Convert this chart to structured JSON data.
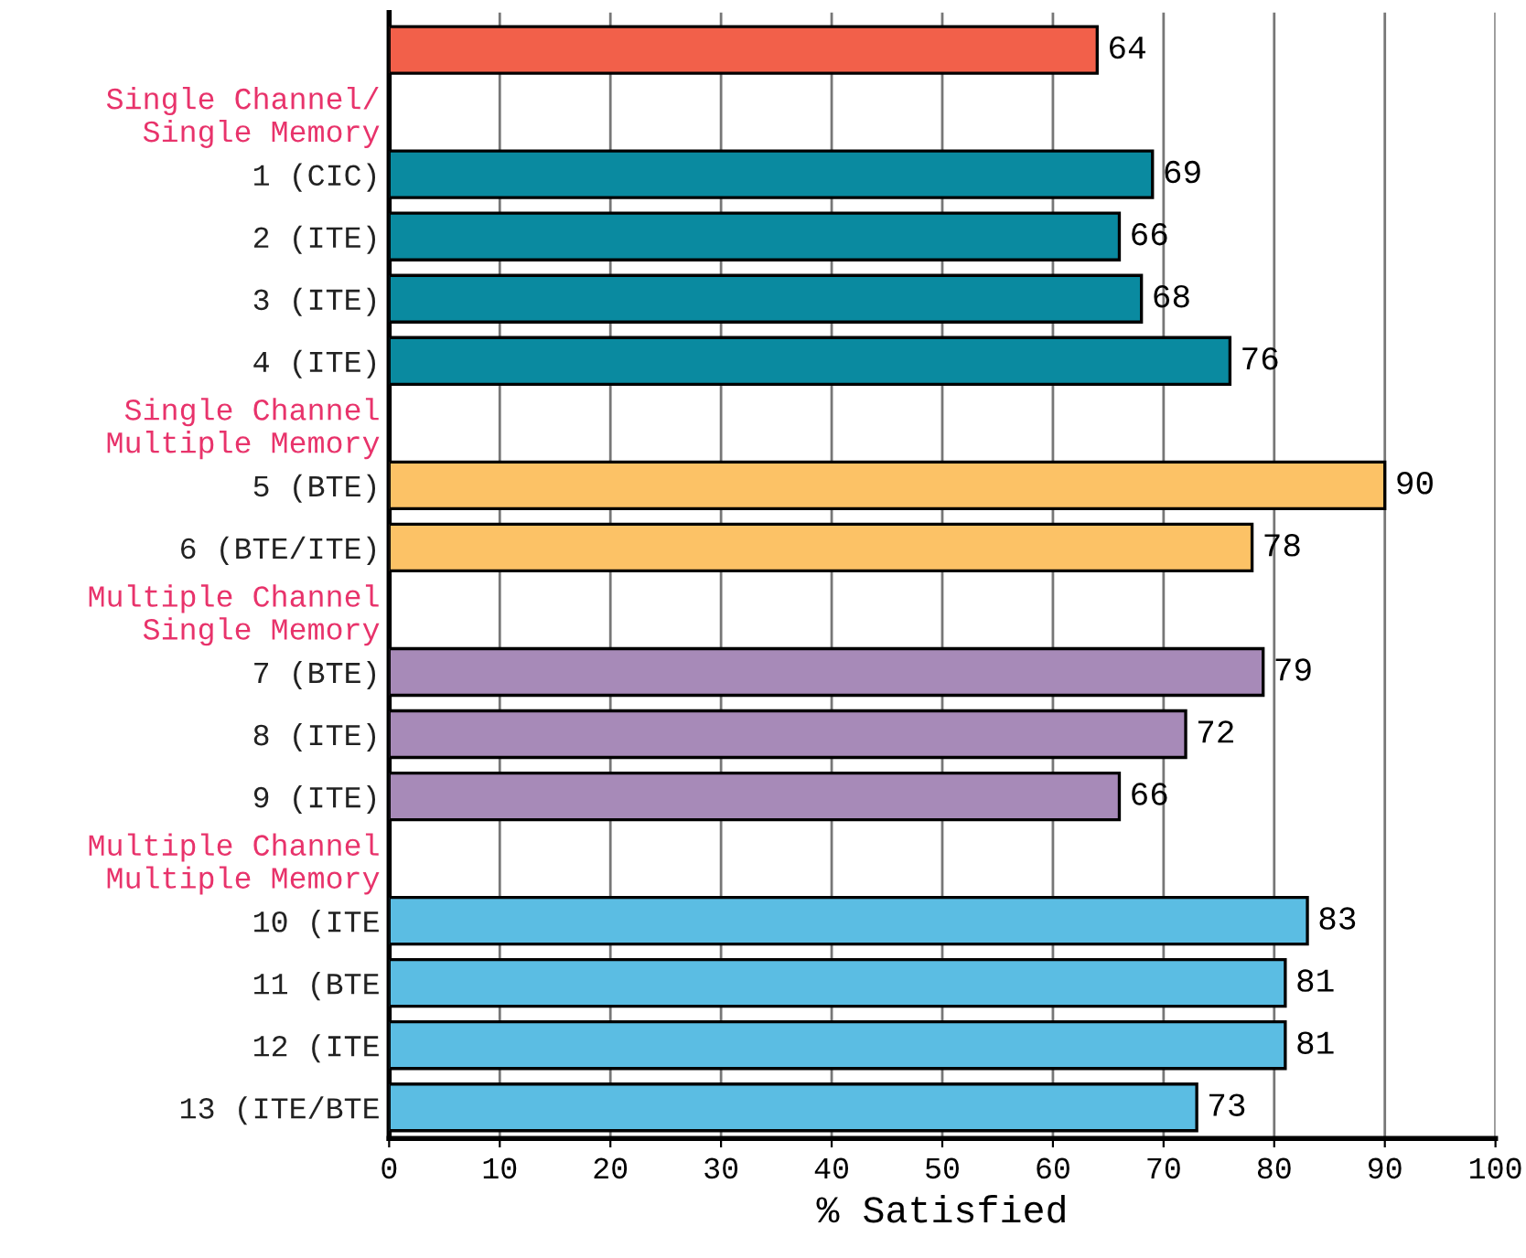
{
  "chart_data": {
    "type": "bar",
    "orientation": "horizontal",
    "xlabel": "% Satisfied",
    "categories": [
      null,
      "Single Channel/\nSingle Memory",
      "1 (CIC)",
      "2 (ITE)",
      "3 (ITE)",
      "4 (ITE)",
      "Single Channel\nMultiple Memory",
      "5 (BTE)",
      "6 (BTE/ITE)",
      "Multiple Channel\nSingle Memory",
      "7 (BTE)",
      "8 (ITE)",
      "9 (ITE)",
      "Multiple Channel\nMultiple Memory",
      "10 (ITE",
      "11 (BTE",
      "12 (ITE",
      "13 (ITE/BTE"
    ],
    "values": [
      64,
      null,
      69,
      66,
      68,
      76,
      null,
      90,
      78,
      null,
      79,
      72,
      66,
      null,
      83,
      81,
      81,
      73
    ],
    "colors": [
      "#f2604a",
      null,
      "#0a8aa0",
      "#0a8aa0",
      "#0a8aa0",
      "#0a8aa0",
      null,
      "#fcc266",
      "#fcc266",
      null,
      "#a78ab8",
      "#a78ab8",
      "#a78ab8",
      null,
      "#5bbde3",
      "#5bbde3",
      "#5bbde3",
      "#5bbde3"
    ],
    "xlim": [
      0,
      100
    ],
    "xticks": [
      0,
      10,
      20,
      30,
      40,
      50,
      60,
      70,
      80,
      90,
      100
    ],
    "grid": "x",
    "data_labels": true
  }
}
